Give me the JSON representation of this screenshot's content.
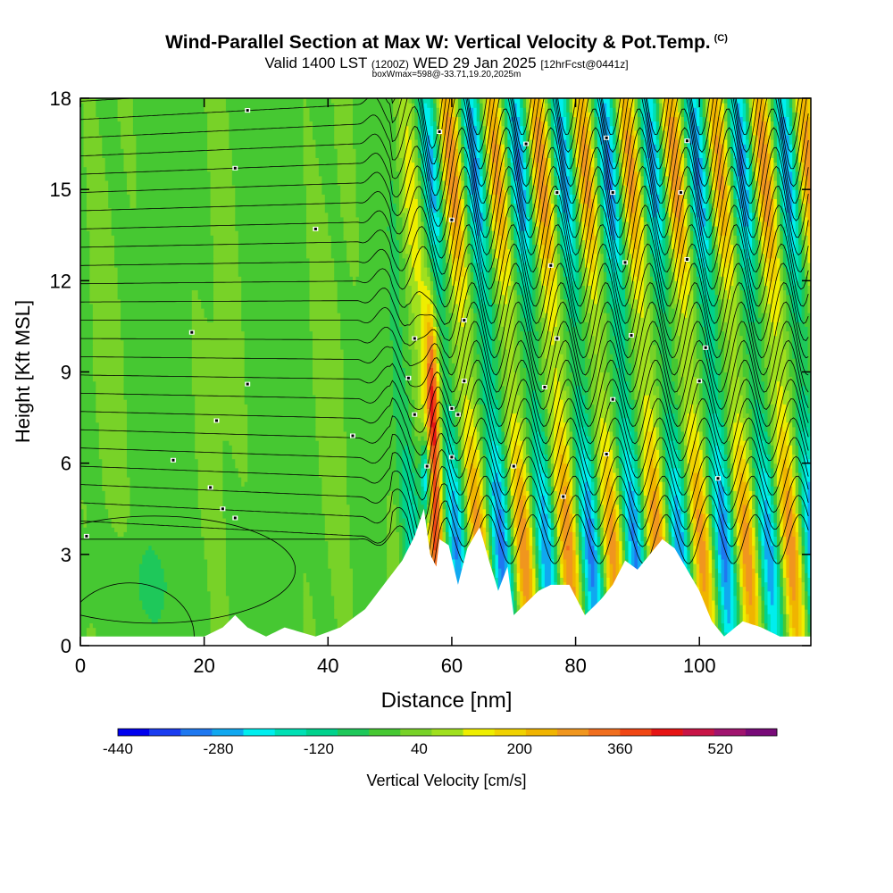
{
  "header": {
    "title": "Wind-Parallel Section at Max W: Vertical Velocity & Pot.Temp.",
    "copyright": "(C)",
    "valid_prefix": "Valid 1400 LST",
    "valid_utc": "(1200Z)",
    "valid_date": "WED 29 Jan 2025",
    "forecast": "[12hrFcst@0441z]",
    "box_info": "boxWmax=598@-33.71,19.20,2025m"
  },
  "chart_data": {
    "type": "heatmap",
    "title": "Wind-Parallel Section at Max W: Vertical Velocity & Pot.Temp.",
    "xlabel": "Distance [nm]",
    "ylabel": "Height [Kft MSL]",
    "xlim": [
      0,
      118
    ],
    "ylim": [
      0,
      18
    ],
    "x_ticks": [
      0,
      20,
      40,
      60,
      80,
      100
    ],
    "y_ticks": [
      0,
      3,
      6,
      9,
      12,
      15,
      18
    ],
    "colorbar": {
      "label": "Vertical Velocity [cm/s]",
      "tick_values": [
        -440,
        -280,
        -120,
        40,
        200,
        360,
        520
      ],
      "colors": [
        "#0000ee",
        "#1a3cf0",
        "#1e78f0",
        "#10a8f0",
        "#00eeee",
        "#00e0b4",
        "#00d28c",
        "#1ec85a",
        "#46c832",
        "#78d228",
        "#a0e01e",
        "#eeee00",
        "#f0d200",
        "#f0b400",
        "#f0961e",
        "#f06e1e",
        "#f04614",
        "#e61414",
        "#c81446",
        "#a0146e",
        "#780a78"
      ],
      "min": -440,
      "step": 50
    },
    "wave_field": {
      "source_x": 57,
      "wave_crests_x": [
        57,
        66,
        73,
        80,
        86,
        92,
        99,
        106
      ],
      "amplitude_max": 598
    },
    "terrain": [
      {
        "x": 0,
        "h": 0.3
      },
      {
        "x": 20,
        "h": 0.3
      },
      {
        "x": 23,
        "h": 0.6
      },
      {
        "x": 25,
        "h": 1.0
      },
      {
        "x": 27,
        "h": 0.6
      },
      {
        "x": 30,
        "h": 0.3
      },
      {
        "x": 33,
        "h": 0.6
      },
      {
        "x": 38,
        "h": 0.3
      },
      {
        "x": 42,
        "h": 0.6
      },
      {
        "x": 46,
        "h": 1.2
      },
      {
        "x": 49,
        "h": 2.0
      },
      {
        "x": 52,
        "h": 2.8
      },
      {
        "x": 54,
        "h": 3.6
      },
      {
        "x": 55.5,
        "h": 4.5
      },
      {
        "x": 56.5,
        "h": 3.0
      },
      {
        "x": 57.5,
        "h": 2.6
      },
      {
        "x": 58,
        "h": 3.5
      },
      {
        "x": 59.5,
        "h": 3.3
      },
      {
        "x": 61,
        "h": 2.0
      },
      {
        "x": 62.5,
        "h": 3.2
      },
      {
        "x": 64.5,
        "h": 3.9
      },
      {
        "x": 66,
        "h": 2.8
      },
      {
        "x": 67.5,
        "h": 1.8
      },
      {
        "x": 69,
        "h": 2.6
      },
      {
        "x": 70,
        "h": 1.0
      },
      {
        "x": 72,
        "h": 1.4
      },
      {
        "x": 74,
        "h": 1.8
      },
      {
        "x": 76,
        "h": 2.0
      },
      {
        "x": 79,
        "h": 2.0
      },
      {
        "x": 81.5,
        "h": 1.0
      },
      {
        "x": 84,
        "h": 1.5
      },
      {
        "x": 86,
        "h": 2.0
      },
      {
        "x": 88,
        "h": 2.8
      },
      {
        "x": 90,
        "h": 2.5
      },
      {
        "x": 92,
        "h": 3.0
      },
      {
        "x": 94,
        "h": 3.5
      },
      {
        "x": 96,
        "h": 3.2
      },
      {
        "x": 98,
        "h": 2.5
      },
      {
        "x": 100,
        "h": 1.8
      },
      {
        "x": 102,
        "h": 0.8
      },
      {
        "x": 104,
        "h": 0.3
      },
      {
        "x": 107,
        "h": 0.8
      },
      {
        "x": 110,
        "h": 0.6
      },
      {
        "x": 113,
        "h": 0.3
      },
      {
        "x": 118,
        "h": 0.3
      }
    ],
    "contour_label_points": [
      {
        "x": 1,
        "y": 3.6
      },
      {
        "x": 25,
        "y": 4.2
      },
      {
        "x": 23,
        "y": 4.5
      },
      {
        "x": 21,
        "y": 5.2
      },
      {
        "x": 15,
        "y": 6.1
      },
      {
        "x": 22,
        "y": 7.4
      },
      {
        "x": 44,
        "y": 6.9
      },
      {
        "x": 27,
        "y": 8.6
      },
      {
        "x": 18,
        "y": 10.3
      },
      {
        "x": 38,
        "y": 13.7
      },
      {
        "x": 25,
        "y": 15.7
      },
      {
        "x": 27,
        "y": 17.6
      },
      {
        "x": 54,
        "y": 10.1
      },
      {
        "x": 54,
        "y": 7.6
      },
      {
        "x": 53,
        "y": 8.8
      },
      {
        "x": 56,
        "y": 5.9
      },
      {
        "x": 58,
        "y": 16.9
      },
      {
        "x": 60,
        "y": 14.0
      },
      {
        "x": 62,
        "y": 10.7
      },
      {
        "x": 62,
        "y": 8.7
      },
      {
        "x": 60,
        "y": 7.8
      },
      {
        "x": 61,
        "y": 7.6
      },
      {
        "x": 60,
        "y": 6.2
      },
      {
        "x": 72,
        "y": 16.5
      },
      {
        "x": 77,
        "y": 14.9
      },
      {
        "x": 76,
        "y": 12.5
      },
      {
        "x": 77,
        "y": 10.1
      },
      {
        "x": 75,
        "y": 8.5
      },
      {
        "x": 70,
        "y": 5.9
      },
      {
        "x": 78,
        "y": 4.9
      },
      {
        "x": 85,
        "y": 16.7
      },
      {
        "x": 86,
        "y": 14.9
      },
      {
        "x": 88,
        "y": 12.6
      },
      {
        "x": 89,
        "y": 10.2
      },
      {
        "x": 86,
        "y": 8.1
      },
      {
        "x": 85,
        "y": 6.3
      },
      {
        "x": 98,
        "y": 16.6
      },
      {
        "x": 97,
        "y": 14.9
      },
      {
        "x": 98,
        "y": 12.7
      },
      {
        "x": 101,
        "y": 9.8
      },
      {
        "x": 100,
        "y": 8.7
      },
      {
        "x": 103,
        "y": 5.5
      }
    ]
  }
}
